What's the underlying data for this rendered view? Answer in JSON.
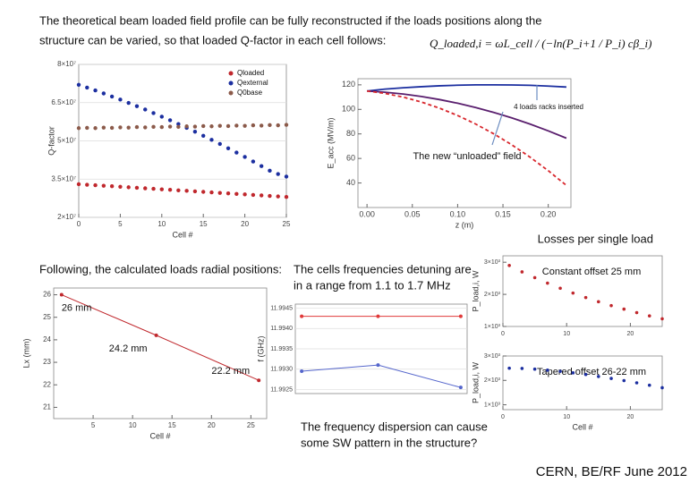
{
  "slide": {
    "title": [
      "The theoretical beam loaded field profile can be fully reconstructed if the loads positions along the",
      "structure can be varied, so that loaded Q-factor in each cell follows:"
    ],
    "formula": "Q_loaded,i = ωL_cell / (−ln(P_i+1 / P_i) cβ_i)",
    "losses_heading": "Losses per single load",
    "positions_note": "Following, the calculated loads radial positions:",
    "detuning_note": [
      "The cells frequencies detuning are",
      "in a range from 1.1 to 1.7 MHz"
    ],
    "dispersion_note": [
      "The frequency dispersion can cause",
      "some SW pattern in the structure?"
    ],
    "footer": "CERN, BE/RF June 2012"
  },
  "chart_data": [
    {
      "type": "scatter",
      "xlabel": "Cell #",
      "ylabel": "Q-factor",
      "x": [
        0,
        1,
        2,
        3,
        4,
        5,
        6,
        7,
        8,
        9,
        10,
        11,
        12,
        13,
        14,
        15,
        16,
        17,
        18,
        19,
        20,
        21,
        22,
        23,
        24,
        25
      ],
      "xlim": [
        0,
        25
      ],
      "xticks": [
        0,
        5,
        10,
        15,
        20,
        25
      ],
      "ylim": [
        20000000,
        80000000
      ],
      "yticks": [
        {
          "value": 20000000,
          "label": "2×10⁷"
        },
        {
          "value": 35000000,
          "label": "3.5×10⁷"
        },
        {
          "value": 50000000,
          "label": "5×10⁷"
        },
        {
          "value": 65000000,
          "label": "6.5×10⁷"
        },
        {
          "value": 80000000,
          "label": "8×10⁷"
        }
      ],
      "grid": true,
      "series": [
        {
          "name": "Qloaded",
          "color": "#c0282d",
          "values": [
            33000000,
            32800000,
            32600000,
            32400000,
            32200000,
            32000000,
            31800000,
            31600000,
            31400000,
            31200000,
            31000000,
            30800000,
            30600000,
            30400000,
            30200000,
            30000000,
            29800000,
            29600000,
            29400000,
            29200000,
            29000000,
            28800000,
            28600000,
            28400000,
            28200000,
            28000000
          ]
        },
        {
          "name": "Qexternal",
          "color": "#1c2fa0",
          "values": [
            72000000,
            70900000,
            69800000,
            68600000,
            67400000,
            66200000,
            64900000,
            63600000,
            62300000,
            60900000,
            59500000,
            58100000,
            56600000,
            55100000,
            53600000,
            52000000,
            50400000,
            48800000,
            47100000,
            45400000,
            43700000,
            41900000,
            40100000,
            38300000,
            37000000,
            36000000
          ]
        },
        {
          "name": "Q0base",
          "color": "#8b5a4a",
          "values": [
            55000000,
            55100000,
            55000000,
            55200000,
            55100000,
            55300000,
            55200000,
            55400000,
            55300000,
            55500000,
            55400000,
            55600000,
            55500000,
            55700000,
            55600000,
            55800000,
            55700000,
            55900000,
            55800000,
            56000000,
            55900000,
            56100000,
            56000000,
            56200000,
            56100000,
            56300000
          ]
        }
      ]
    },
    {
      "type": "line",
      "xlabel": "z (m)",
      "ylabel": "E_acc (MV/m)",
      "x": [
        0,
        0.02,
        0.04,
        0.06,
        0.08,
        0.1,
        0.12,
        0.14,
        0.16,
        0.18,
        0.2,
        0.22
      ],
      "xlim": [
        -0.01,
        0.225
      ],
      "xticks": [
        {
          "value": 0,
          "label": "0.00"
        },
        0.05,
        {
          "value": 0.1,
          "label": "0.10"
        },
        0.15,
        {
          "value": 0.2,
          "label": "0.20"
        }
      ],
      "ylim": [
        20,
        125
      ],
      "yticks": [
        40,
        60,
        80,
        100,
        120
      ],
      "annotations": [
        "4 loads racks inserted",
        "The new “unloaded” field"
      ],
      "series": [
        {
          "color": "#1c2fa0",
          "values": [
            115,
            116.5,
            117.6,
            118.5,
            119.2,
            119.7,
            120,
            120,
            119.9,
            119.6,
            119,
            118.2
          ]
        },
        {
          "color": "#5a1f6e",
          "values": [
            115,
            114,
            112.5,
            110.5,
            108,
            105,
            101.5,
            97.5,
            93,
            88,
            82.5,
            76.5
          ]
        },
        {
          "color": "#d8262c",
          "dash": true,
          "values": [
            115,
            113,
            110,
            106,
            101,
            95,
            88,
            80,
            71,
            61,
            50,
            38
          ]
        }
      ]
    },
    {
      "type": "line",
      "xlabel": "Cell #",
      "ylabel": "Lx (mm)",
      "x": [
        1,
        13,
        26
      ],
      "xlim": [
        0,
        27
      ],
      "xticks": [
        5,
        10,
        15,
        20,
        25
      ],
      "ylim": [
        20.5,
        26.3
      ],
      "yticks": [
        21,
        22,
        23,
        24,
        25,
        26
      ],
      "series": [
        {
          "color": "#c0282d",
          "markers": true,
          "values": [
            26,
            24.2,
            22.2
          ],
          "value_labels": [
            "26 mm",
            "24.2 mm",
            "22.2 mm"
          ]
        }
      ]
    },
    {
      "type": "line",
      "ylabel": "f (GHz)",
      "x": [
        1,
        13,
        26
      ],
      "xlim": [
        0,
        27
      ],
      "ylim": [
        11.9924,
        11.9946
      ],
      "yticks": [
        11.9925,
        {
          "value": 11.993,
          "label": "11.9930"
        },
        11.9935,
        {
          "value": 11.994,
          "label": "11.9940"
        },
        11.9945
      ],
      "grid": true,
      "series": [
        {
          "color": "#e03a3a",
          "markers": true,
          "values": [
            11.9943,
            11.9943,
            11.9943
          ]
        },
        {
          "color": "#5566cc",
          "markers": true,
          "values": [
            11.99295,
            11.9931,
            11.99255
          ]
        }
      ]
    },
    {
      "type": "scatter",
      "title": "Constant offset 25 mm",
      "ylabel": "P_load,i, W",
      "x": [
        1,
        3,
        5,
        7,
        9,
        11,
        13,
        15,
        17,
        19,
        21,
        23,
        25
      ],
      "xlim": [
        0,
        25
      ],
      "xticks": [
        0,
        10,
        20
      ],
      "ylim": [
        1000,
        3200
      ],
      "yticks": [
        {
          "value": 1000,
          "label": "1×10³"
        },
        {
          "value": 2000,
          "label": "2×10³"
        },
        {
          "value": 3000,
          "label": "3×10³"
        }
      ],
      "series": [
        {
          "color": "#c0282d",
          "values": [
            2900,
            2700,
            2520,
            2350,
            2190,
            2040,
            1900,
            1770,
            1650,
            1540,
            1430,
            1330,
            1240
          ]
        }
      ]
    },
    {
      "type": "scatter",
      "title": "Tapered offset 26-22 mm",
      "xlabel": "Cell #",
      "ylabel": "P_load,i, W",
      "x": [
        1,
        3,
        5,
        7,
        9,
        11,
        13,
        15,
        17,
        19,
        21,
        23,
        25
      ],
      "xlim": [
        0,
        25
      ],
      "xticks": [
        0,
        10,
        20
      ],
      "ylim": [
        800,
        3000
      ],
      "yticks": [
        {
          "value": 1000,
          "label": "1×10³"
        },
        {
          "value": 2000,
          "label": "2×10³"
        },
        {
          "value": 3000,
          "label": "3×10³"
        }
      ],
      "series": [
        {
          "color": "#1c2fa0",
          "values": [
            2500,
            2490,
            2460,
            2420,
            2370,
            2310,
            2240,
            2160,
            2080,
            1990,
            1900,
            1800,
            1700
          ]
        }
      ]
    }
  ]
}
